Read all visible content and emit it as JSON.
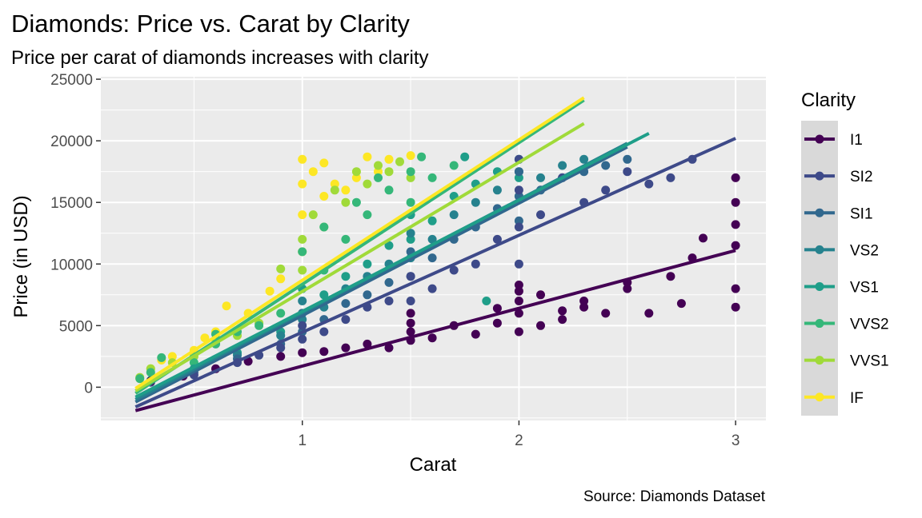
{
  "chart_data": {
    "type": "scatter",
    "title": "Diamonds: Price vs. Carat by Clarity",
    "subtitle": "Price per carat of diamonds increases with clarity",
    "xlabel": "Carat",
    "ylabel": "Price (in USD)",
    "caption": "Source: Diamonds Dataset",
    "xlim": [
      0.07,
      3.14
    ],
    "ylim": [
      -2700,
      25200
    ],
    "x_ticks": [
      1,
      2,
      3
    ],
    "y_ticks": [
      0,
      5000,
      10000,
      15000,
      20000,
      25000
    ],
    "grid": true,
    "legend": {
      "title": "Clarity",
      "position": "right"
    },
    "series": [
      {
        "name": "I1",
        "color": "#440154",
        "trend": {
          "x": [
            0.23,
            3.0
          ],
          "y": [
            -1900,
            11100
          ]
        },
        "points": [
          [
            0.3,
            500
          ],
          [
            0.45,
            900
          ],
          [
            0.6,
            1500
          ],
          [
            0.75,
            2100
          ],
          [
            0.9,
            2500
          ],
          [
            1.0,
            2800
          ],
          [
            1.1,
            2900
          ],
          [
            1.2,
            3200
          ],
          [
            1.3,
            3500
          ],
          [
            1.4,
            3200
          ],
          [
            1.5,
            3800
          ],
          [
            1.5,
            4500
          ],
          [
            1.5,
            5200
          ],
          [
            1.5,
            6000
          ],
          [
            1.6,
            4000
          ],
          [
            1.7,
            5000
          ],
          [
            1.8,
            4300
          ],
          [
            1.9,
            5200
          ],
          [
            1.9,
            6400
          ],
          [
            2.0,
            4500
          ],
          [
            2.0,
            6000
          ],
          [
            2.0,
            7000
          ],
          [
            2.0,
            7800
          ],
          [
            2.0,
            8300
          ],
          [
            2.1,
            5000
          ],
          [
            2.1,
            7500
          ],
          [
            2.2,
            5500
          ],
          [
            2.2,
            6200
          ],
          [
            2.3,
            6500
          ],
          [
            2.3,
            7000
          ],
          [
            2.4,
            6000
          ],
          [
            2.5,
            8000
          ],
          [
            2.5,
            8500
          ],
          [
            2.6,
            6000
          ],
          [
            2.7,
            9000
          ],
          [
            2.75,
            6800
          ],
          [
            2.8,
            10500
          ],
          [
            2.85,
            12100
          ],
          [
            3.0,
            6500
          ],
          [
            3.0,
            8000
          ],
          [
            3.0,
            11500
          ],
          [
            3.0,
            13200
          ],
          [
            3.0,
            15000
          ],
          [
            3.0,
            17000
          ]
        ]
      },
      {
        "name": "SI2",
        "color": "#3e4a89",
        "trend": {
          "x": [
            0.23,
            3.0
          ],
          "y": [
            -1600,
            20200
          ]
        },
        "points": [
          [
            0.3,
            400
          ],
          [
            0.5,
            1000
          ],
          [
            0.7,
            2000
          ],
          [
            0.8,
            2600
          ],
          [
            0.9,
            3200
          ],
          [
            1.0,
            3900
          ],
          [
            1.0,
            5000
          ],
          [
            1.1,
            4500
          ],
          [
            1.2,
            5500
          ],
          [
            1.3,
            6500
          ],
          [
            1.4,
            7000
          ],
          [
            1.5,
            7000
          ],
          [
            1.5,
            9000
          ],
          [
            1.6,
            8000
          ],
          [
            1.7,
            9500
          ],
          [
            1.8,
            10000
          ],
          [
            1.9,
            12000
          ],
          [
            2.0,
            10000
          ],
          [
            2.0,
            13000
          ],
          [
            2.0,
            16000
          ],
          [
            2.0,
            18500
          ],
          [
            2.1,
            14000
          ],
          [
            2.2,
            17000
          ],
          [
            2.3,
            15000
          ],
          [
            2.4,
            16000
          ],
          [
            2.5,
            17500
          ],
          [
            2.6,
            16500
          ],
          [
            2.7,
            17000
          ],
          [
            2.8,
            18500
          ]
        ]
      },
      {
        "name": "SI1",
        "color": "#31688e",
        "trend": {
          "x": [
            0.23,
            2.5
          ],
          "y": [
            -1200,
            19500
          ]
        },
        "points": [
          [
            0.3,
            450
          ],
          [
            0.5,
            1200
          ],
          [
            0.7,
            2300
          ],
          [
            0.9,
            3500
          ],
          [
            1.0,
            4500
          ],
          [
            1.0,
            6000
          ],
          [
            1.1,
            5500
          ],
          [
            1.2,
            6800
          ],
          [
            1.3,
            7500
          ],
          [
            1.4,
            8500
          ],
          [
            1.5,
            9000
          ],
          [
            1.5,
            11000
          ],
          [
            1.6,
            10500
          ],
          [
            1.7,
            12000
          ],
          [
            1.8,
            13000
          ],
          [
            1.9,
            14500
          ],
          [
            2.0,
            13500
          ],
          [
            2.0,
            15500
          ],
          [
            2.0,
            17500
          ],
          [
            2.1,
            16000
          ],
          [
            2.2,
            17000
          ],
          [
            2.3,
            17500
          ],
          [
            2.4,
            18000
          ],
          [
            2.5,
            18500
          ]
        ]
      },
      {
        "name": "VS2",
        "color": "#26828e",
        "trend": {
          "x": [
            0.23,
            2.5
          ],
          "y": [
            -1000,
            19800
          ]
        },
        "points": [
          [
            0.3,
            500
          ],
          [
            0.5,
            1400
          ],
          [
            0.7,
            2600
          ],
          [
            0.9,
            4200
          ],
          [
            1.0,
            5500
          ],
          [
            1.0,
            7000
          ],
          [
            1.1,
            6500
          ],
          [
            1.2,
            8000
          ],
          [
            1.3,
            9000
          ],
          [
            1.4,
            10000
          ],
          [
            1.5,
            10500
          ],
          [
            1.5,
            12500
          ],
          [
            1.6,
            12000
          ],
          [
            1.7,
            14000
          ],
          [
            1.8,
            15000
          ],
          [
            1.9,
            16000
          ],
          [
            2.0,
            15500
          ],
          [
            2.0,
            17500
          ],
          [
            2.1,
            17000
          ],
          [
            2.2,
            18000
          ],
          [
            2.3,
            18500
          ]
        ]
      },
      {
        "name": "VS1",
        "color": "#1f9e89",
        "trend": {
          "x": [
            0.23,
            2.6
          ],
          "y": [
            -800,
            20600
          ]
        },
        "points": [
          [
            0.3,
            550
          ],
          [
            0.5,
            1500
          ],
          [
            0.7,
            2800
          ],
          [
            0.9,
            4500
          ],
          [
            1.0,
            6000
          ],
          [
            1.0,
            8000
          ],
          [
            1.1,
            7500
          ],
          [
            1.2,
            9000
          ],
          [
            1.3,
            10000
          ],
          [
            1.4,
            11500
          ],
          [
            1.5,
            12000
          ],
          [
            1.5,
            14000
          ],
          [
            1.6,
            13500
          ],
          [
            1.7,
            15500
          ],
          [
            1.75,
            18700
          ],
          [
            1.8,
            16500
          ],
          [
            1.85,
            7000
          ],
          [
            1.9,
            17500
          ],
          [
            2.0,
            17000
          ],
          [
            2.0,
            18500
          ]
        ]
      },
      {
        "name": "VVS2",
        "color": "#35b779",
        "trend": {
          "x": [
            0.23,
            2.3
          ],
          "y": [
            -500,
            23300
          ]
        },
        "points": [
          [
            0.25,
            700
          ],
          [
            0.3,
            1200
          ],
          [
            0.35,
            2400
          ],
          [
            0.5,
            2000
          ],
          [
            0.6,
            3500
          ],
          [
            0.6,
            4300
          ],
          [
            0.7,
            4500
          ],
          [
            0.8,
            5000
          ],
          [
            0.9,
            6000
          ],
          [
            1.0,
            8000
          ],
          [
            1.0,
            11000
          ],
          [
            1.1,
            9500
          ],
          [
            1.1,
            13000
          ],
          [
            1.2,
            12000
          ],
          [
            1.25,
            15000
          ],
          [
            1.3,
            14000
          ],
          [
            1.35,
            17000
          ],
          [
            1.4,
            16000
          ],
          [
            1.5,
            15000
          ],
          [
            1.5,
            17500
          ],
          [
            1.55,
            18700
          ],
          [
            1.6,
            17000
          ],
          [
            1.7,
            18000
          ]
        ]
      },
      {
        "name": "VVS1",
        "color": "#a0da39",
        "trend": {
          "x": [
            0.23,
            2.3
          ],
          "y": [
            -300,
            21400
          ]
        },
        "points": [
          [
            0.25,
            800
          ],
          [
            0.3,
            1500
          ],
          [
            0.4,
            2000
          ],
          [
            0.5,
            2500
          ],
          [
            0.6,
            3600
          ],
          [
            0.7,
            4200
          ],
          [
            0.8,
            5200
          ],
          [
            0.9,
            9600
          ],
          [
            1.0,
            9500
          ],
          [
            1.0,
            12000
          ],
          [
            1.05,
            14000
          ],
          [
            1.1,
            13000
          ],
          [
            1.15,
            16000
          ],
          [
            1.2,
            15000
          ],
          [
            1.25,
            17500
          ],
          [
            1.3,
            16500
          ],
          [
            1.35,
            18000
          ],
          [
            1.4,
            17500
          ],
          [
            1.45,
            18300
          ],
          [
            1.5,
            17000
          ]
        ]
      },
      {
        "name": "IF",
        "color": "#fde725",
        "trend": {
          "x": [
            0.23,
            2.3
          ],
          "y": [
            -100,
            23500
          ]
        },
        "points": [
          [
            0.25,
            700
          ],
          [
            0.3,
            1500
          ],
          [
            0.35,
            2200
          ],
          [
            0.4,
            2500
          ],
          [
            0.5,
            3000
          ],
          [
            0.55,
            4000
          ],
          [
            0.6,
            4500
          ],
          [
            0.65,
            6600
          ],
          [
            0.75,
            6000
          ],
          [
            0.85,
            7800
          ],
          [
            0.9,
            8800
          ],
          [
            1.0,
            11000
          ],
          [
            1.0,
            14000
          ],
          [
            1.0,
            16500
          ],
          [
            1.0,
            18500
          ],
          [
            1.05,
            17500
          ],
          [
            1.1,
            15500
          ],
          [
            1.1,
            18200
          ],
          [
            1.15,
            16500
          ],
          [
            1.2,
            16000
          ],
          [
            1.25,
            17000
          ],
          [
            1.3,
            18700
          ],
          [
            1.35,
            17500
          ],
          [
            1.4,
            18500
          ],
          [
            1.5,
            18800
          ]
        ]
      }
    ]
  }
}
